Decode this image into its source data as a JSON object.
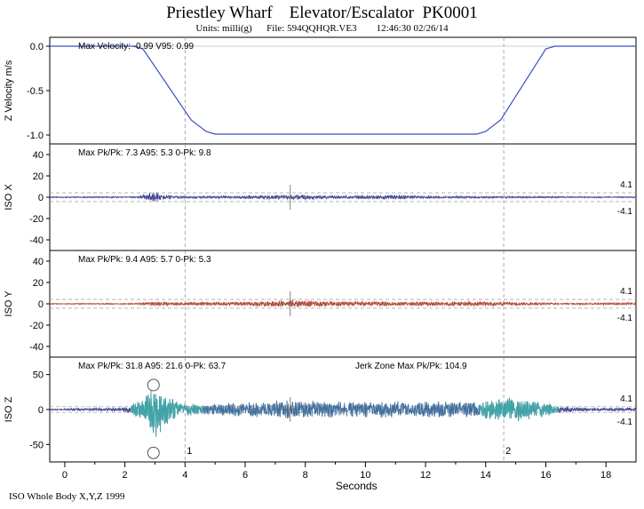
{
  "header": {
    "title": "Priestley Wharf    Elevator/Escalator  PK0001",
    "subtitle": "Units: milli(g)      File: 594QQHQR.VE3        12:46:30 02/26/14"
  },
  "footer": "ISO Whole Body X,Y,Z  1999",
  "chart_data": {
    "type": "line",
    "xlabel": "Seconds",
    "xlim": [
      -0.5,
      19
    ],
    "x_ticks": [
      "0",
      "2",
      "4",
      "6",
      "8",
      "10",
      "12",
      "14",
      "16",
      "18"
    ],
    "markers": [
      {
        "label": "1",
        "x": 4.0
      },
      {
        "label": "2",
        "x": 14.6
      }
    ],
    "panels": [
      {
        "id": "zvel",
        "ylabel": "Z Velocity m/s",
        "ylim": [
          -1.1,
          0.1
        ],
        "y_ticks": [
          "0.0",
          "-0.5",
          "-1.0"
        ],
        "stats": "Max Velocity: -0.99  V95: 0.99",
        "color": "#3b4fc4",
        "series": {
          "name": "Z Velocity",
          "x": [
            -0.5,
            2.3,
            2.6,
            4.2,
            4.7,
            5.0,
            13.7,
            14.0,
            14.5,
            16.0,
            16.3,
            19.0
          ],
          "y": [
            0.0,
            0.0,
            -0.03,
            -0.83,
            -0.96,
            -0.99,
            -0.99,
            -0.96,
            -0.83,
            -0.03,
            0.0,
            0.0
          ]
        }
      },
      {
        "id": "isox",
        "ylabel": "ISO X",
        "ylim": [
          -50,
          50
        ],
        "y_ticks": [
          "40",
          "20",
          "0",
          "-20",
          "-40"
        ],
        "stats": "Max Pk/Pk: 7.3  A95: 5.3  0-Pk: 9.8",
        "color": "#3a3f8f",
        "band": {
          "upper": "4.1",
          "lower": "-4.1",
          "value": 4.1
        },
        "envelope": [
          {
            "x": -0.5,
            "a": 0.6
          },
          {
            "x": 2.4,
            "a": 0.7
          },
          {
            "x": 2.9,
            "a": 4.5
          },
          {
            "x": 3.0,
            "a": 5.0
          },
          {
            "x": 3.3,
            "a": 2.0
          },
          {
            "x": 4.0,
            "a": 1.2
          },
          {
            "x": 6.0,
            "a": 1.4
          },
          {
            "x": 7.5,
            "a": 2.6
          },
          {
            "x": 9.0,
            "a": 1.4
          },
          {
            "x": 10.8,
            "a": 2.0
          },
          {
            "x": 12.0,
            "a": 1.2
          },
          {
            "x": 14.0,
            "a": 1.0
          },
          {
            "x": 16.5,
            "a": 0.8
          },
          {
            "x": 19.0,
            "a": 0.6
          }
        ],
        "cross": {
          "x": 7.5,
          "y": 0
        }
      },
      {
        "id": "isoy",
        "ylabel": "ISO Y",
        "ylim": [
          -50,
          50
        ],
        "y_ticks": [
          "40",
          "20",
          "0",
          "-20",
          "-40"
        ],
        "stats": "Max Pk/Pk: 9.4  A95: 5.7  0-Pk: 5.3",
        "color": "#b0432d",
        "band": {
          "upper": "4.1",
          "lower": "-4.1",
          "value": 4.1
        },
        "envelope": [
          {
            "x": -0.5,
            "a": 0.5
          },
          {
            "x": 2.4,
            "a": 0.7
          },
          {
            "x": 3.0,
            "a": 2.5
          },
          {
            "x": 3.5,
            "a": 1.5
          },
          {
            "x": 6.0,
            "a": 2.0
          },
          {
            "x": 7.5,
            "a": 3.5
          },
          {
            "x": 9.0,
            "a": 2.5
          },
          {
            "x": 11.0,
            "a": 2.0
          },
          {
            "x": 13.0,
            "a": 2.2
          },
          {
            "x": 14.5,
            "a": 2.0
          },
          {
            "x": 16.5,
            "a": 0.8
          },
          {
            "x": 19.0,
            "a": 1.2
          }
        ],
        "cross": {
          "x": 7.5,
          "y": 0
        }
      },
      {
        "id": "isoz",
        "ylabel": "ISO Z",
        "ylim": [
          -75,
          75
        ],
        "y_ticks": [
          "50",
          "0",
          "-50"
        ],
        "stats": "Max Pk/Pk: 31.8  A95: 21.6  0-Pk: 63.7",
        "stats2": "Jerk Zone Max Pk/Pk: 104.9",
        "color": "#3a3f8f",
        "color2": "#3ea6a6",
        "band": {
          "upper": "4.1",
          "lower": "-4.1",
          "value": 4.1
        },
        "envelope": [
          {
            "x": -0.5,
            "a": 1.0
          },
          {
            "x": 2.0,
            "a": 3.0
          },
          {
            "x": 2.6,
            "a": 15.0
          },
          {
            "x": 2.95,
            "a": 45.0
          },
          {
            "x": 3.3,
            "a": 28.0
          },
          {
            "x": 3.8,
            "a": 10.0
          },
          {
            "x": 4.5,
            "a": 8.0
          },
          {
            "x": 6.0,
            "a": 10.0
          },
          {
            "x": 7.5,
            "a": 14.0
          },
          {
            "x": 9.0,
            "a": 12.0
          },
          {
            "x": 11.0,
            "a": 12.0
          },
          {
            "x": 13.0,
            "a": 11.0
          },
          {
            "x": 14.3,
            "a": 16.0
          },
          {
            "x": 14.9,
            "a": 18.0
          },
          {
            "x": 15.8,
            "a": 12.0
          },
          {
            "x": 16.5,
            "a": 5.0
          },
          {
            "x": 17.5,
            "a": 2.0
          },
          {
            "x": 19.0,
            "a": 3.0
          }
        ],
        "jerk_zones": [
          [
            2.2,
            4.6
          ],
          [
            13.8,
            16.4
          ]
        ],
        "circles": [
          {
            "x": 2.95,
            "y": 35
          },
          {
            "x": 2.95,
            "y": -62
          }
        ],
        "cross": {
          "x": 7.5,
          "y": 0
        }
      }
    ]
  }
}
